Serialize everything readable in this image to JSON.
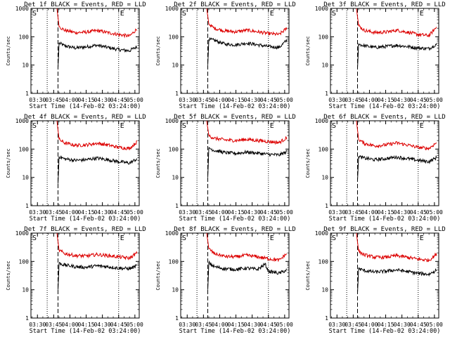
{
  "figure": {
    "panel_title_suffix": "BLACK = Events, RED = LLD",
    "x_title": "Start Time (14-Feb-02 03:24:00)",
    "y_title": "Counts/sec",
    "colors": {
      "events": "#000000",
      "lld": "#dd0000",
      "axis": "#000000"
    }
  },
  "chart_data": [
    {
      "type": "line",
      "title": "Det 1f",
      "xlabel": "Start Time (14-Feb-02 03:24:00)",
      "ylabel": "Counts/sec",
      "x_ticks": [
        "03:30",
        "03:45",
        "04:00",
        "04:15",
        "04:30",
        "04:45",
        "05:00"
      ],
      "y_ticks": [
        "1",
        "10",
        "100",
        "1000"
      ],
      "y_scale": "log",
      "ylim": [
        1,
        1000
      ],
      "xlim": [
        "03:24",
        "05:04"
      ],
      "markers": [
        {
          "label": "S",
          "time": "03:24"
        },
        {
          "label": "E",
          "time": "04:45"
        }
      ],
      "vlines_dotted": [
        "03:39",
        "04:45"
      ],
      "vline_dashed": "03:49",
      "series": [
        {
          "name": "BLACK = Events",
          "x": [
            "03:49",
            "03:50",
            "03:55",
            "04:05",
            "04:15",
            "04:25",
            "04:35",
            "04:45",
            "04:55",
            "05:02"
          ],
          "values": [
            8,
            60,
            48,
            40,
            44,
            50,
            42,
            35,
            32,
            45
          ]
        },
        {
          "name": "RED = LLD",
          "x": [
            "03:48",
            "03:50",
            "03:55",
            "04:05",
            "04:15",
            "04:25",
            "04:35",
            "04:45",
            "04:55",
            "05:02"
          ],
          "values": [
            1000,
            230,
            170,
            140,
            145,
            165,
            140,
            120,
            105,
            190
          ]
        }
      ]
    },
    {
      "type": "line",
      "title": "Det 2f",
      "xlabel": "Start Time (14-Feb-02 03:24:00)",
      "ylabel": "Counts/sec",
      "x_ticks": [
        "03:30",
        "03:45",
        "04:00",
        "04:15",
        "04:30",
        "04:45",
        "05:00"
      ],
      "y_ticks": [
        "1",
        "10",
        "100",
        "1000"
      ],
      "y_scale": "log",
      "ylim": [
        1,
        1000
      ],
      "xlim": [
        "03:24",
        "05:04"
      ],
      "markers": [
        {
          "label": "S",
          "time": "03:24"
        },
        {
          "label": "E",
          "time": "04:45"
        }
      ],
      "vlines_dotted": [
        "03:39",
        "04:45"
      ],
      "vline_dashed": "03:49",
      "series": [
        {
          "name": "BLACK = Events",
          "x": [
            "03:49",
            "03:50",
            "03:55",
            "04:05",
            "04:15",
            "04:25",
            "04:35",
            "04:45",
            "04:55",
            "05:02"
          ],
          "values": [
            10,
            80,
            75,
            55,
            52,
            60,
            52,
            45,
            42,
            75
          ]
        },
        {
          "name": "RED = LLD",
          "x": [
            "03:48",
            "03:50",
            "03:55",
            "04:05",
            "04:15",
            "04:25",
            "04:35",
            "04:45",
            "04:55",
            "05:02"
          ],
          "values": [
            1000,
            280,
            200,
            160,
            150,
            170,
            150,
            130,
            120,
            200
          ]
        }
      ]
    },
    {
      "type": "line",
      "title": "Det 3f",
      "xlabel": "Start Time (14-Feb-02 03:24:00)",
      "ylabel": "Counts/sec",
      "x_ticks": [
        "03:30",
        "03:45",
        "04:00",
        "04:15",
        "04:30",
        "04:45",
        "05:00"
      ],
      "y_ticks": [
        "1",
        "10",
        "100",
        "1000"
      ],
      "y_scale": "log",
      "ylim": [
        1,
        1000
      ],
      "xlim": [
        "03:24",
        "05:04"
      ],
      "markers": [
        {
          "label": "S",
          "time": "03:24"
        },
        {
          "label": "E",
          "time": "04:45"
        }
      ],
      "vlines_dotted": [
        "03:39",
        "04:45"
      ],
      "vline_dashed": "03:49",
      "series": [
        {
          "name": "BLACK = Events",
          "x": [
            "03:49",
            "03:50",
            "03:55",
            "04:05",
            "04:15",
            "04:25",
            "04:35",
            "04:45",
            "04:55",
            "05:02"
          ],
          "values": [
            8,
            55,
            48,
            42,
            45,
            50,
            45,
            40,
            38,
            55
          ]
        },
        {
          "name": "RED = LLD",
          "x": [
            "03:48",
            "03:50",
            "03:55",
            "04:05",
            "04:15",
            "04:25",
            "04:35",
            "04:45",
            "04:55",
            "05:02"
          ],
          "values": [
            1000,
            250,
            170,
            140,
            145,
            170,
            145,
            120,
            110,
            220
          ]
        }
      ]
    },
    {
      "type": "line",
      "title": "Det 4f",
      "xlabel": "Start Time (14-Feb-02 03:24:00)",
      "ylabel": "Counts/sec",
      "x_ticks": [
        "03:30",
        "03:45",
        "04:00",
        "04:15",
        "04:30",
        "04:45",
        "05:00"
      ],
      "y_ticks": [
        "1",
        "10",
        "100",
        "1000"
      ],
      "y_scale": "log",
      "ylim": [
        1,
        1000
      ],
      "xlim": [
        "03:24",
        "05:04"
      ],
      "markers": [
        {
          "label": "S",
          "time": "03:24"
        },
        {
          "label": "E",
          "time": "04:45"
        }
      ],
      "vlines_dotted": [
        "03:39",
        "04:45"
      ],
      "vline_dashed": "03:49",
      "series": [
        {
          "name": "BLACK = Events",
          "x": [
            "03:49",
            "03:50",
            "03:55",
            "04:05",
            "04:15",
            "04:25",
            "04:35",
            "04:45",
            "04:55",
            "05:02"
          ],
          "values": [
            6,
            55,
            45,
            40,
            42,
            48,
            42,
            36,
            32,
            45
          ]
        },
        {
          "name": "RED = LLD",
          "x": [
            "03:48",
            "03:50",
            "03:55",
            "04:05",
            "04:15",
            "04:25",
            "04:35",
            "04:45",
            "04:55",
            "05:02"
          ],
          "values": [
            1000,
            220,
            165,
            135,
            140,
            160,
            140,
            115,
            105,
            180
          ]
        }
      ]
    },
    {
      "type": "line",
      "title": "Det 5f",
      "xlabel": "Start Time (14-Feb-02 03:24:00)",
      "ylabel": "Counts/sec",
      "x_ticks": [
        "03:30",
        "03:45",
        "04:00",
        "04:15",
        "04:30",
        "04:45",
        "05:00"
      ],
      "y_ticks": [
        "1",
        "10",
        "100",
        "1000"
      ],
      "y_scale": "log",
      "ylim": [
        1,
        1000
      ],
      "xlim": [
        "03:24",
        "05:04"
      ],
      "markers": [
        {
          "label": "S",
          "time": "03:24"
        },
        {
          "label": "E",
          "time": "04:45"
        }
      ],
      "vlines_dotted": [
        "03:39",
        "04:45"
      ],
      "vline_dashed": "03:49",
      "series": [
        {
          "name": "BLACK = Events",
          "x": [
            "03:49",
            "03:50",
            "03:55",
            "04:05",
            "04:15",
            "04:25",
            "04:35",
            "04:45",
            "04:55",
            "05:02"
          ],
          "values": [
            10,
            110,
            90,
            75,
            70,
            78,
            72,
            65,
            62,
            80
          ]
        },
        {
          "name": "RED = LLD",
          "x": [
            "03:48",
            "03:50",
            "03:55",
            "04:05",
            "04:15",
            "04:25",
            "04:35",
            "04:45",
            "04:55",
            "05:02"
          ],
          "values": [
            1000,
            300,
            240,
            210,
            200,
            220,
            200,
            185,
            170,
            250
          ]
        }
      ]
    },
    {
      "type": "line",
      "title": "Det 6f",
      "xlabel": "Start Time (14-Feb-02 03:24:00)",
      "ylabel": "Counts/sec",
      "x_ticks": [
        "03:30",
        "03:45",
        "04:00",
        "04:15",
        "04:30",
        "04:45",
        "05:00"
      ],
      "y_ticks": [
        "1",
        "10",
        "100",
        "1000"
      ],
      "y_scale": "log",
      "ylim": [
        1,
        1000
      ],
      "xlim": [
        "03:24",
        "05:04"
      ],
      "markers": [
        {
          "label": "S",
          "time": "03:24"
        },
        {
          "label": "E",
          "time": "04:45"
        }
      ],
      "vlines_dotted": [
        "03:39",
        "04:45"
      ],
      "vline_dashed": "03:49",
      "series": [
        {
          "name": "BLACK = Events",
          "x": [
            "03:49",
            "03:50",
            "03:55",
            "04:05",
            "04:15",
            "04:25",
            "04:35",
            "04:45",
            "04:55",
            "05:02"
          ],
          "values": [
            8,
            55,
            48,
            42,
            46,
            52,
            46,
            40,
            36,
            50
          ]
        },
        {
          "name": "RED = LLD",
          "x": [
            "03:48",
            "03:50",
            "03:55",
            "04:05",
            "04:15",
            "04:25",
            "04:35",
            "04:45",
            "04:55",
            "05:02"
          ],
          "values": [
            1000,
            220,
            160,
            130,
            140,
            165,
            140,
            115,
            105,
            170
          ]
        }
      ]
    },
    {
      "type": "line",
      "title": "Det 7f",
      "xlabel": "Start Time (14-Feb-02 03:24:00)",
      "ylabel": "Counts/sec",
      "x_ticks": [
        "03:30",
        "03:45",
        "04:00",
        "04:15",
        "04:30",
        "04:45",
        "05:00"
      ],
      "y_ticks": [
        "1",
        "10",
        "100",
        "1000"
      ],
      "y_scale": "log",
      "ylim": [
        1,
        1000
      ],
      "xlim": [
        "03:24",
        "05:04"
      ],
      "markers": [
        {
          "label": "S",
          "time": "03:24"
        },
        {
          "label": "E",
          "time": "04:45"
        }
      ],
      "vlines_dotted": [
        "03:39",
        "04:45"
      ],
      "vline_dashed": "03:49",
      "series": [
        {
          "name": "BLACK = Events",
          "x": [
            "03:49",
            "03:50",
            "03:55",
            "04:05",
            "04:15",
            "04:25",
            "04:35",
            "04:45",
            "04:55",
            "05:02"
          ],
          "values": [
            10,
            85,
            75,
            65,
            62,
            70,
            65,
            58,
            55,
            70
          ]
        },
        {
          "name": "RED = LLD",
          "x": [
            "03:48",
            "03:50",
            "03:55",
            "04:05",
            "04:15",
            "04:25",
            "04:35",
            "04:45",
            "04:55",
            "05:02"
          ],
          "values": [
            1000,
            250,
            190,
            160,
            155,
            175,
            160,
            145,
            130,
            200
          ]
        }
      ]
    },
    {
      "type": "line",
      "title": "Det 8f",
      "xlabel": "Start Time (14-Feb-02 03:24:00)",
      "ylabel": "Counts/sec",
      "x_ticks": [
        "03:30",
        "03:45",
        "04:00",
        "04:15",
        "04:30",
        "04:45",
        "05:00"
      ],
      "y_ticks": [
        "1",
        "10",
        "100",
        "1000"
      ],
      "y_scale": "log",
      "ylim": [
        1,
        1000
      ],
      "xlim": [
        "03:24",
        "05:04"
      ],
      "markers": [
        {
          "label": "S",
          "time": "03:24"
        },
        {
          "label": "E",
          "time": "04:45"
        }
      ],
      "vlines_dotted": [
        "03:39",
        "04:45"
      ],
      "vline_dashed": "03:49",
      "series": [
        {
          "name": "BLACK = Events",
          "x": [
            "03:49",
            "03:50",
            "03:55",
            "04:05",
            "04:15",
            "04:25",
            "04:35",
            "04:42",
            "04:45",
            "04:55",
            "05:02"
          ],
          "values": [
            10,
            90,
            65,
            55,
            52,
            58,
            52,
            80,
            45,
            38,
            50
          ]
        },
        {
          "name": "RED = LLD",
          "x": [
            "03:48",
            "03:50",
            "03:55",
            "04:05",
            "04:15",
            "04:25",
            "04:35",
            "04:45",
            "04:55",
            "05:02"
          ],
          "values": [
            1000,
            280,
            190,
            150,
            145,
            165,
            145,
            125,
            110,
            190
          ]
        }
      ]
    },
    {
      "type": "line",
      "title": "Det 9f",
      "xlabel": "Start Time (14-Feb-02 03:24:00)",
      "ylabel": "Counts/sec",
      "x_ticks": [
        "03:30",
        "03:45",
        "04:00",
        "04:15",
        "04:30",
        "04:45",
        "05:00"
      ],
      "y_ticks": [
        "1",
        "10",
        "100",
        "1000"
      ],
      "y_scale": "log",
      "ylim": [
        1,
        1000
      ],
      "xlim": [
        "03:24",
        "05:04"
      ],
      "markers": [
        {
          "label": "S",
          "time": "03:24"
        },
        {
          "label": "E",
          "time": "04:45"
        }
      ],
      "vlines_dotted": [
        "03:39",
        "04:45"
      ],
      "vline_dashed": "03:49",
      "series": [
        {
          "name": "BLACK = Events",
          "x": [
            "03:49",
            "03:50",
            "03:55",
            "04:05",
            "04:15",
            "04:25",
            "04:35",
            "04:45",
            "04:55",
            "05:02"
          ],
          "values": [
            8,
            55,
            48,
            42,
            45,
            50,
            44,
            38,
            35,
            50
          ]
        },
        {
          "name": "RED = LLD",
          "x": [
            "03:48",
            "03:50",
            "03:55",
            "04:05",
            "04:15",
            "04:25",
            "04:35",
            "04:45",
            "04:55",
            "05:02"
          ],
          "values": [
            1000,
            230,
            170,
            140,
            140,
            160,
            140,
            120,
            110,
            180
          ]
        }
      ]
    }
  ]
}
